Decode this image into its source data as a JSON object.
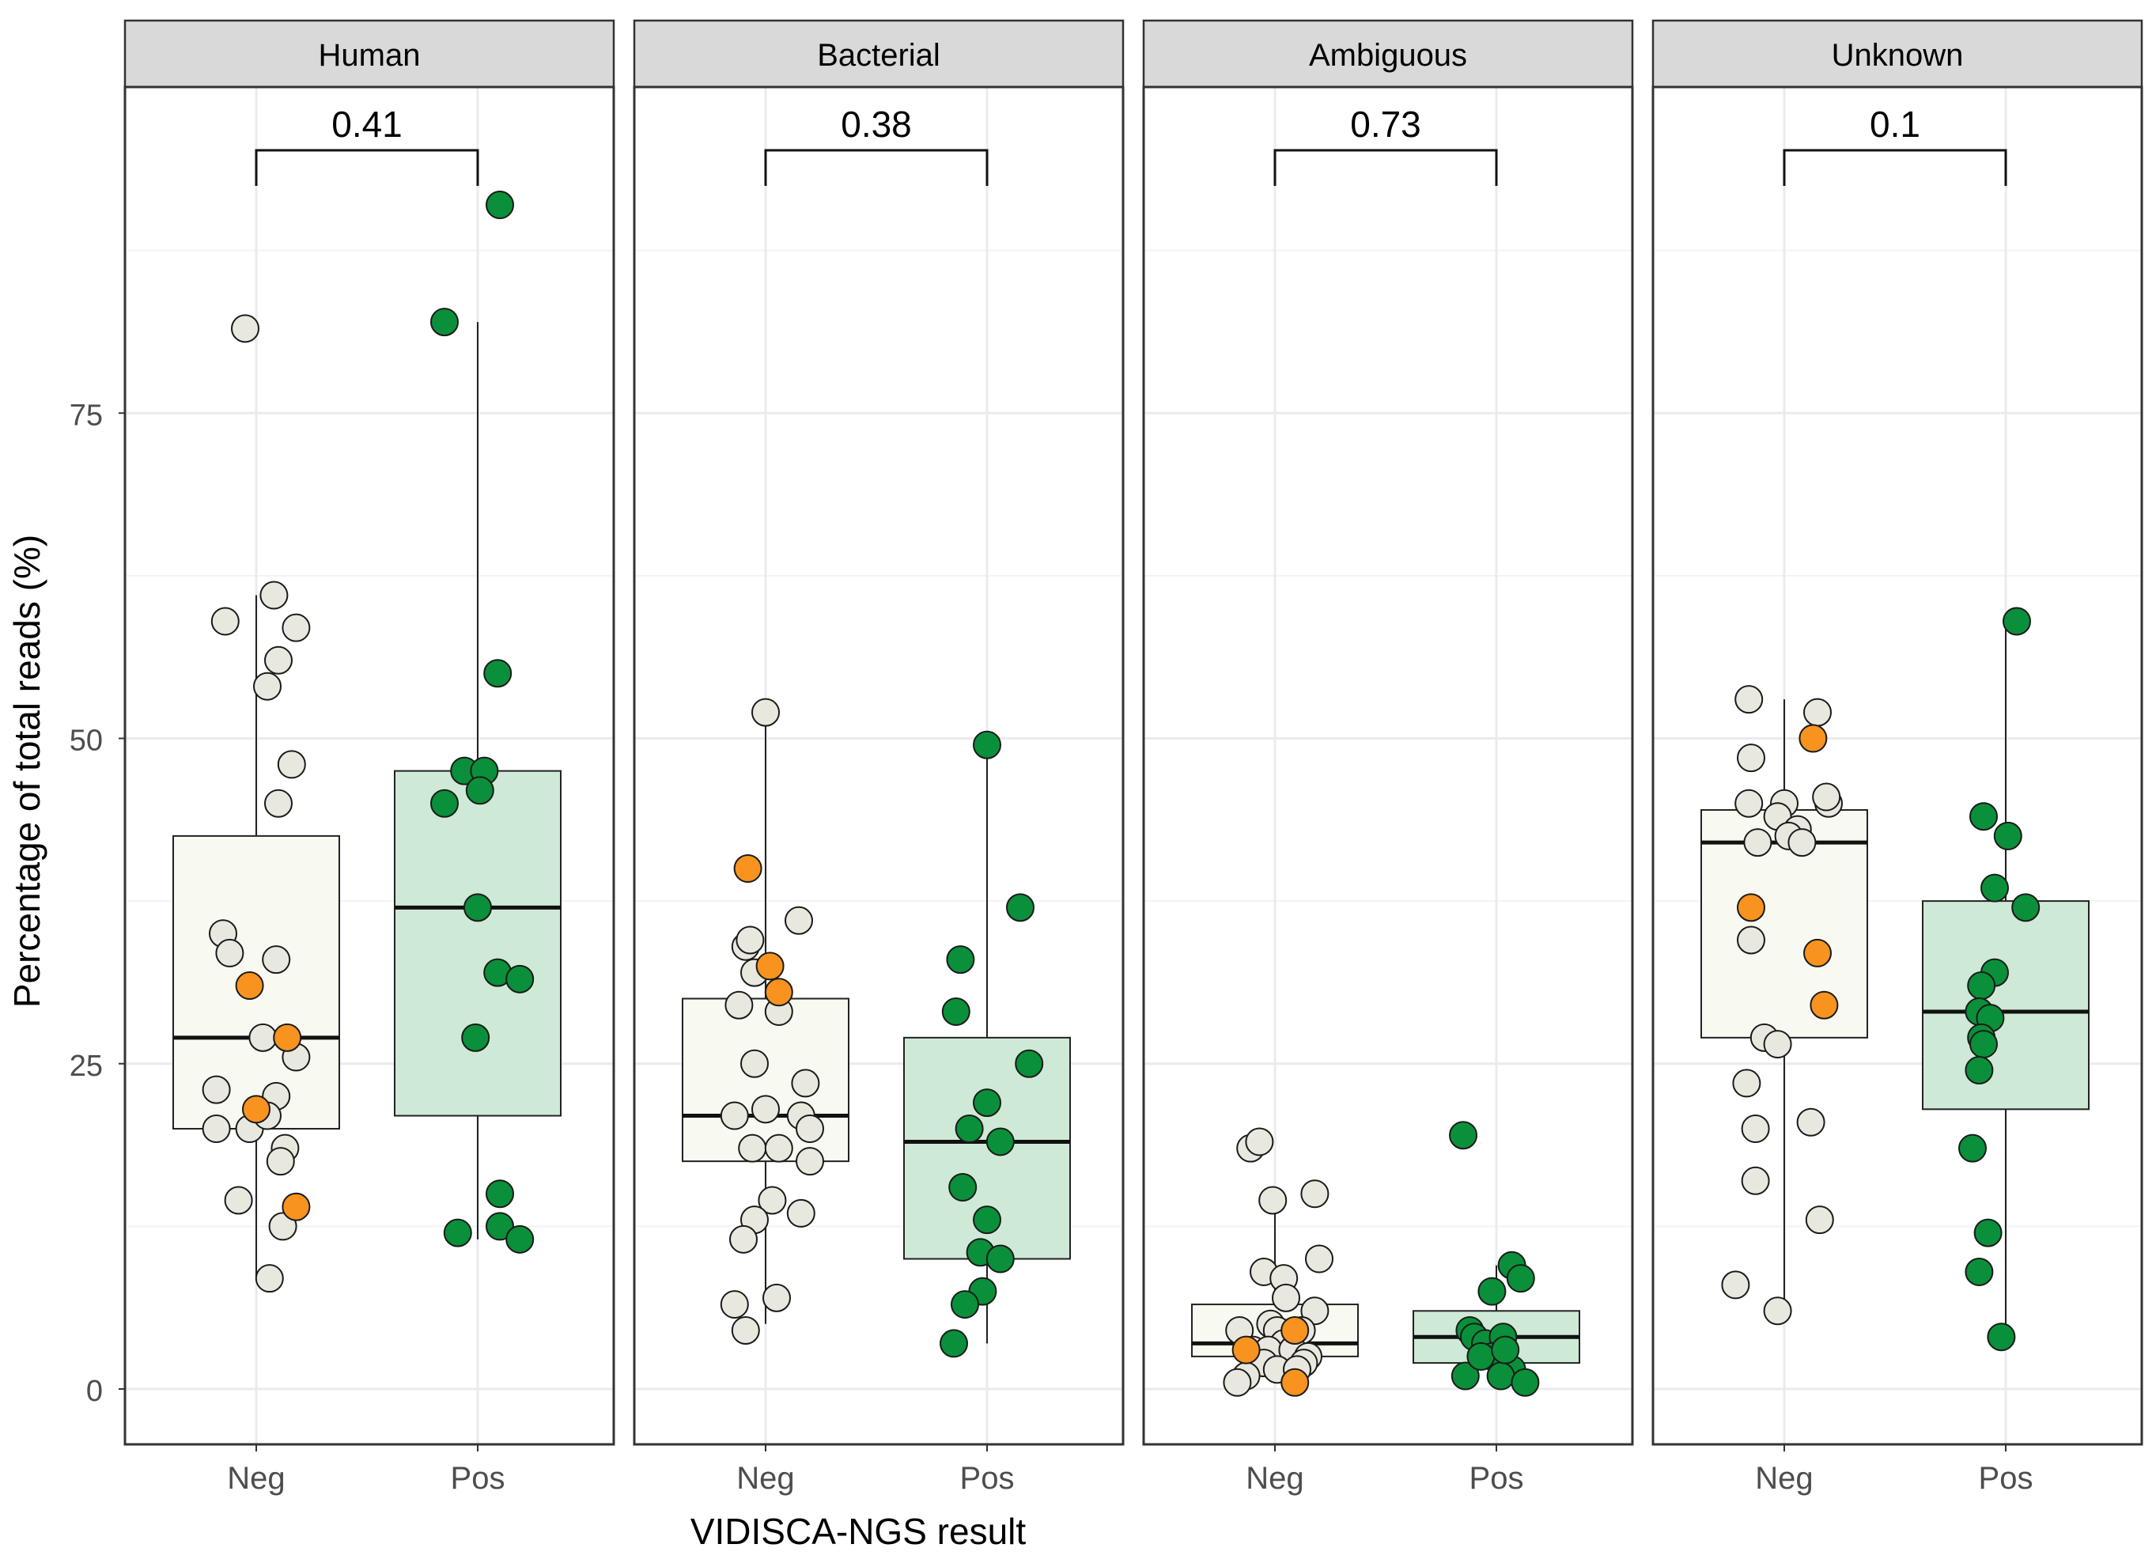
{
  "chart_data": {
    "type": "boxplot",
    "xlabel": "VIDISCA-NGS result",
    "ylabel": "Percentage of total reads (%)",
    "ylim": [
      -4,
      100
    ],
    "yticks": [
      0,
      25,
      50,
      75
    ],
    "categories": [
      "Neg",
      "Pos"
    ],
    "colors": {
      "neg_point": "#e8e8df",
      "neg_highlight": "#f7931e",
      "pos_point": "#0a8f3a",
      "neg_box": "#f8faf2",
      "pos_box": "#cfe9d7",
      "strip": "#d9d9d9",
      "grid": "#ebebeb"
    },
    "panels": [
      {
        "label": "Human",
        "p_value": "0.41",
        "boxes": {
          "Neg": {
            "q1": 20.0,
            "median": 27.0,
            "q3": 42.5,
            "lower": 8.5,
            "upper": 61.0
          },
          "Pos": {
            "q1": 21.0,
            "median": 37.0,
            "q3": 47.5,
            "lower": 11.5,
            "upper": 82.0
          }
        },
        "points": {
          "Neg": [
            [
              -0.05,
              81.5
            ],
            [
              -0.14,
              59.0
            ],
            [
              0.08,
              61.0
            ],
            [
              0.18,
              58.5
            ],
            [
              0.1,
              56.0
            ],
            [
              0.05,
              54.0
            ],
            [
              0.16,
              48.0
            ],
            [
              0.1,
              45.0
            ],
            [
              -0.15,
              35.0
            ],
            [
              -0.12,
              33.5
            ],
            [
              0.09,
              33.0
            ],
            [
              0.03,
              27.0
            ],
            [
              0.18,
              25.5
            ],
            [
              -0.18,
              23.0
            ],
            [
              0.09,
              22.5
            ],
            [
              -0.18,
              20.0
            ],
            [
              -0.03,
              20.0
            ],
            [
              0.05,
              21.0
            ],
            [
              0.13,
              18.5
            ],
            [
              0.11,
              17.5
            ],
            [
              -0.08,
              14.5
            ],
            [
              0.12,
              12.5
            ],
            [
              0.06,
              8.5
            ]
          ],
          "Neg_highlight": [
            [
              -0.03,
              31.0
            ],
            [
              0.14,
              27.0
            ],
            [
              0.0,
              21.5
            ],
            [
              0.18,
              14.0
            ]
          ],
          "Pos": [
            [
              0.1,
              91.0
            ],
            [
              -0.15,
              82.0
            ],
            [
              0.09,
              55.0
            ],
            [
              -0.06,
              47.5
            ],
            [
              0.03,
              47.5
            ],
            [
              -0.15,
              45.0
            ],
            [
              0.01,
              46.0
            ],
            [
              0.0,
              37.0
            ],
            [
              0.09,
              32.0
            ],
            [
              0.19,
              31.5
            ],
            [
              -0.01,
              27.0
            ],
            [
              0.1,
              15.0
            ],
            [
              -0.09,
              12.0
            ],
            [
              0.1,
              12.5
            ],
            [
              0.19,
              11.5
            ]
          ]
        }
      },
      {
        "label": "Bacterial",
        "p_value": "0.38",
        "boxes": {
          "Neg": {
            "q1": 17.5,
            "median": 21.0,
            "q3": 30.0,
            "lower": 5.0,
            "upper": 52.0
          },
          "Pos": {
            "q1": 10.0,
            "median": 19.0,
            "q3": 27.0,
            "lower": 3.5,
            "upper": 49.5
          }
        },
        "points": {
          "Neg": [
            [
              0.0,
              52.0
            ],
            [
              0.15,
              36.0
            ],
            [
              -0.09,
              34.0
            ],
            [
              -0.12,
              29.5
            ],
            [
              0.06,
              29.0
            ],
            [
              -0.05,
              25.0
            ],
            [
              0.18,
              23.5
            ],
            [
              0.0,
              21.5
            ],
            [
              -0.14,
              21.0
            ],
            [
              0.16,
              21.0
            ],
            [
              0.2,
              20.0
            ],
            [
              -0.06,
              18.5
            ],
            [
              0.06,
              18.5
            ],
            [
              0.2,
              17.5
            ],
            [
              0.03,
              14.5
            ],
            [
              -0.05,
              13.0
            ],
            [
              0.16,
              13.5
            ],
            [
              -0.1,
              11.5
            ],
            [
              -0.14,
              6.5
            ],
            [
              -0.09,
              4.5
            ],
            [
              0.05,
              7.0
            ],
            [
              -0.05,
              32.0
            ],
            [
              -0.07,
              34.5
            ]
          ],
          "Neg_highlight": [
            [
              -0.08,
              40.0
            ],
            [
              0.02,
              32.5
            ],
            [
              0.06,
              30.5
            ]
          ],
          "Pos": [
            [
              0.0,
              49.5
            ],
            [
              0.15,
              37.0
            ],
            [
              -0.12,
              33.0
            ],
            [
              -0.14,
              29.0
            ],
            [
              0.0,
              22.0
            ],
            [
              -0.08,
              20.0
            ],
            [
              0.06,
              19.0
            ],
            [
              0.19,
              25.0
            ],
            [
              -0.11,
              15.5
            ],
            [
              0.0,
              13.0
            ],
            [
              -0.03,
              10.5
            ],
            [
              0.06,
              10.0
            ],
            [
              -0.02,
              7.5
            ],
            [
              -0.1,
              6.5
            ],
            [
              -0.15,
              3.5
            ]
          ]
        }
      },
      {
        "label": "Ambiguous",
        "p_value": "0.73",
        "boxes": {
          "Neg": {
            "q1": 2.5,
            "median": 3.5,
            "q3": 6.5,
            "lower": 0.5,
            "upper": 14.5
          },
          "Pos": {
            "q1": 2.0,
            "median": 4.0,
            "q3": 6.0,
            "lower": 0.5,
            "upper": 9.5
          }
        },
        "points": {
          "Neg": [
            [
              -0.11,
              18.5
            ],
            [
              -0.07,
              19.0
            ],
            [
              0.18,
              15.0
            ],
            [
              -0.01,
              14.5
            ],
            [
              0.2,
              10.0
            ],
            [
              -0.05,
              9.0
            ],
            [
              0.04,
              8.5
            ],
            [
              0.05,
              7.0
            ],
            [
              0.18,
              6.0
            ],
            [
              -0.02,
              5.0
            ],
            [
              0.01,
              4.5
            ],
            [
              -0.16,
              4.5
            ],
            [
              0.12,
              4.5
            ],
            [
              0.04,
              3.5
            ],
            [
              -0.1,
              3.0
            ],
            [
              -0.03,
              3.0
            ],
            [
              0.08,
              3.0
            ],
            [
              0.15,
              2.5
            ],
            [
              0.13,
              2.0
            ],
            [
              -0.05,
              2.0
            ],
            [
              0.01,
              1.5
            ],
            [
              -0.13,
              1.0
            ],
            [
              0.1,
              1.5
            ],
            [
              -0.17,
              0.5
            ]
          ],
          "Neg_highlight": [
            [
              0.09,
              4.5
            ],
            [
              -0.13,
              3.0
            ],
            [
              0.09,
              0.5
            ]
          ],
          "Pos": [
            [
              -0.15,
              19.5
            ],
            [
              0.07,
              9.5
            ],
            [
              0.11,
              8.5
            ],
            [
              -0.02,
              7.5
            ],
            [
              -0.12,
              4.5
            ],
            [
              -0.1,
              4.0
            ],
            [
              -0.05,
              3.5
            ],
            [
              0.03,
              4.0
            ],
            [
              -0.02,
              2.5
            ],
            [
              0.07,
              1.5
            ],
            [
              -0.14,
              1.0
            ],
            [
              0.02,
              1.0
            ],
            [
              0.13,
              0.5
            ],
            [
              -0.07,
              2.5
            ],
            [
              0.04,
              3.0
            ]
          ]
        }
      },
      {
        "label": "Unknown",
        "p_value": "0.1",
        "boxes": {
          "Neg": {
            "q1": 27.0,
            "median": 42.0,
            "q3": 44.5,
            "lower": 6.0,
            "upper": 53.0
          },
          "Pos": {
            "q1": 21.5,
            "median": 29.0,
            "q3": 37.5,
            "lower": 4.0,
            "upper": 59.0
          }
        },
        "points": {
          "Neg": [
            [
              -0.16,
              53.0
            ],
            [
              0.15,
              52.0
            ],
            [
              -0.15,
              48.5
            ],
            [
              -0.16,
              45.0
            ],
            [
              0.0,
              45.0
            ],
            [
              0.2,
              45.0
            ],
            [
              0.19,
              45.5
            ],
            [
              -0.03,
              44.0
            ],
            [
              0.06,
              43.0
            ],
            [
              0.02,
              42.5
            ],
            [
              0.08,
              42.0
            ],
            [
              -0.12,
              42.0
            ],
            [
              -0.15,
              34.5
            ],
            [
              -0.09,
              27.0
            ],
            [
              -0.03,
              26.5
            ],
            [
              -0.17,
              23.5
            ],
            [
              -0.13,
              20.0
            ],
            [
              0.12,
              20.5
            ],
            [
              -0.13,
              16.0
            ],
            [
              0.16,
              13.0
            ],
            [
              -0.22,
              8.0
            ],
            [
              -0.03,
              6.0
            ]
          ],
          "Neg_highlight": [
            [
              0.13,
              50.0
            ],
            [
              -0.15,
              37.0
            ],
            [
              0.15,
              33.5
            ],
            [
              0.18,
              29.5
            ]
          ],
          "Pos": [
            [
              0.05,
              59.0
            ],
            [
              -0.1,
              44.0
            ],
            [
              0.01,
              42.5
            ],
            [
              -0.05,
              38.5
            ],
            [
              0.09,
              37.0
            ],
            [
              -0.05,
              32.0
            ],
            [
              -0.11,
              31.0
            ],
            [
              -0.12,
              29.0
            ],
            [
              -0.07,
              28.5
            ],
            [
              -0.11,
              27.0
            ],
            [
              -0.1,
              26.5
            ],
            [
              -0.12,
              24.5
            ],
            [
              -0.15,
              18.5
            ],
            [
              -0.08,
              12.0
            ],
            [
              -0.12,
              9.0
            ],
            [
              -0.02,
              4.0
            ]
          ]
        }
      }
    ]
  }
}
